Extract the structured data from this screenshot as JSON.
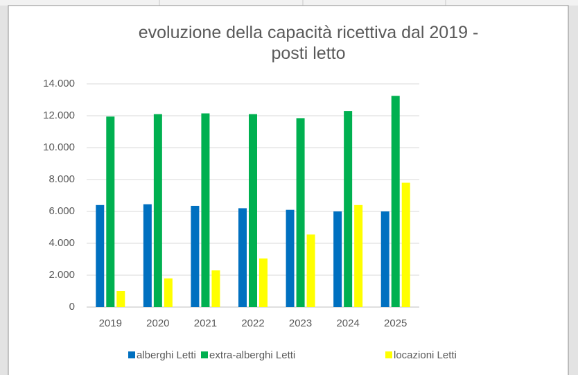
{
  "chart_data": {
    "type": "bar",
    "title": "evoluzione della capacità ricettiva dal 2019 - posti letto",
    "categories": [
      "2019",
      "2020",
      "2021",
      "2022",
      "2023",
      "2024",
      "2025"
    ],
    "series": [
      {
        "name": "alberghi Letti",
        "color": "#0070c0",
        "values": [
          6400,
          6450,
          6350,
          6200,
          6100,
          6000,
          6000
        ]
      },
      {
        "name": "extra-alberghi Letti",
        "color": "#00b050",
        "values": [
          11950,
          12100,
          12150,
          12100,
          11850,
          12300,
          13250
        ]
      },
      {
        "name": "locazioni Letti",
        "color": "#ffff00",
        "values": [
          1000,
          1800,
          2300,
          3050,
          4550,
          6400,
          7800
        ]
      }
    ],
    "ylim": [
      0,
      14000
    ],
    "yticks": [
      0,
      {
        "value": 2000,
        "label": "2.000"
      },
      {
        "value": 4000,
        "label": "4.000"
      },
      {
        "value": 6000,
        "label": "6.000"
      },
      {
        "value": 8000,
        "label": "8.000"
      },
      {
        "value": 10000,
        "label": "10.000"
      },
      {
        "value": 12000,
        "label": "12.000"
      },
      {
        "value": 14000,
        "label": "14.000"
      }
    ],
    "grid": true,
    "legend": "bottom"
  }
}
